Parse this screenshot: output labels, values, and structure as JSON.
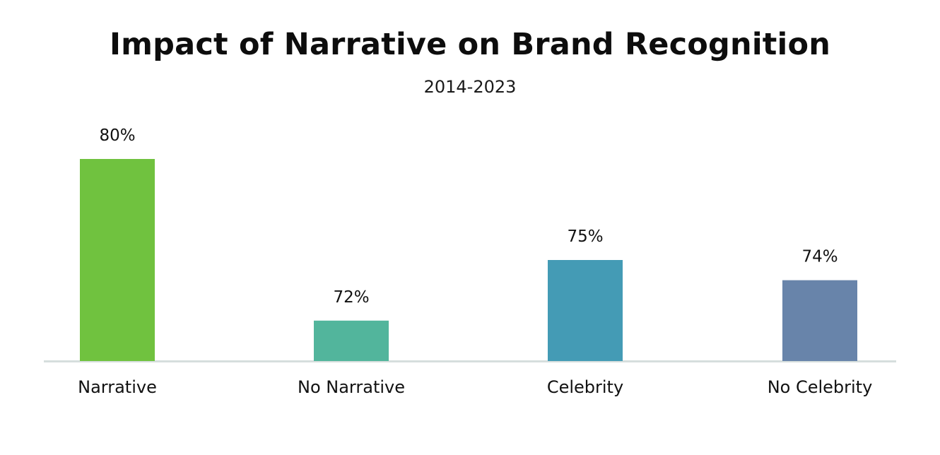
{
  "chart_data": {
    "type": "bar",
    "title": "Impact of Narrative on Brand Recognition",
    "subtitle": "2014-2023",
    "xlabel": "",
    "ylabel": "",
    "categories": [
      "Narrative",
      "No Narrative",
      "Celebrity",
      "No Celebrity"
    ],
    "values": [
      80,
      72,
      75,
      74
    ],
    "value_labels": [
      "80%",
      "72%",
      "75%",
      "74%"
    ],
    "unit": "%",
    "colors": [
      "#70c23f",
      "#52b59c",
      "#449bb5",
      "#6884aa"
    ],
    "axis_color": "#d6dedd",
    "grid": false,
    "legend": "none"
  }
}
